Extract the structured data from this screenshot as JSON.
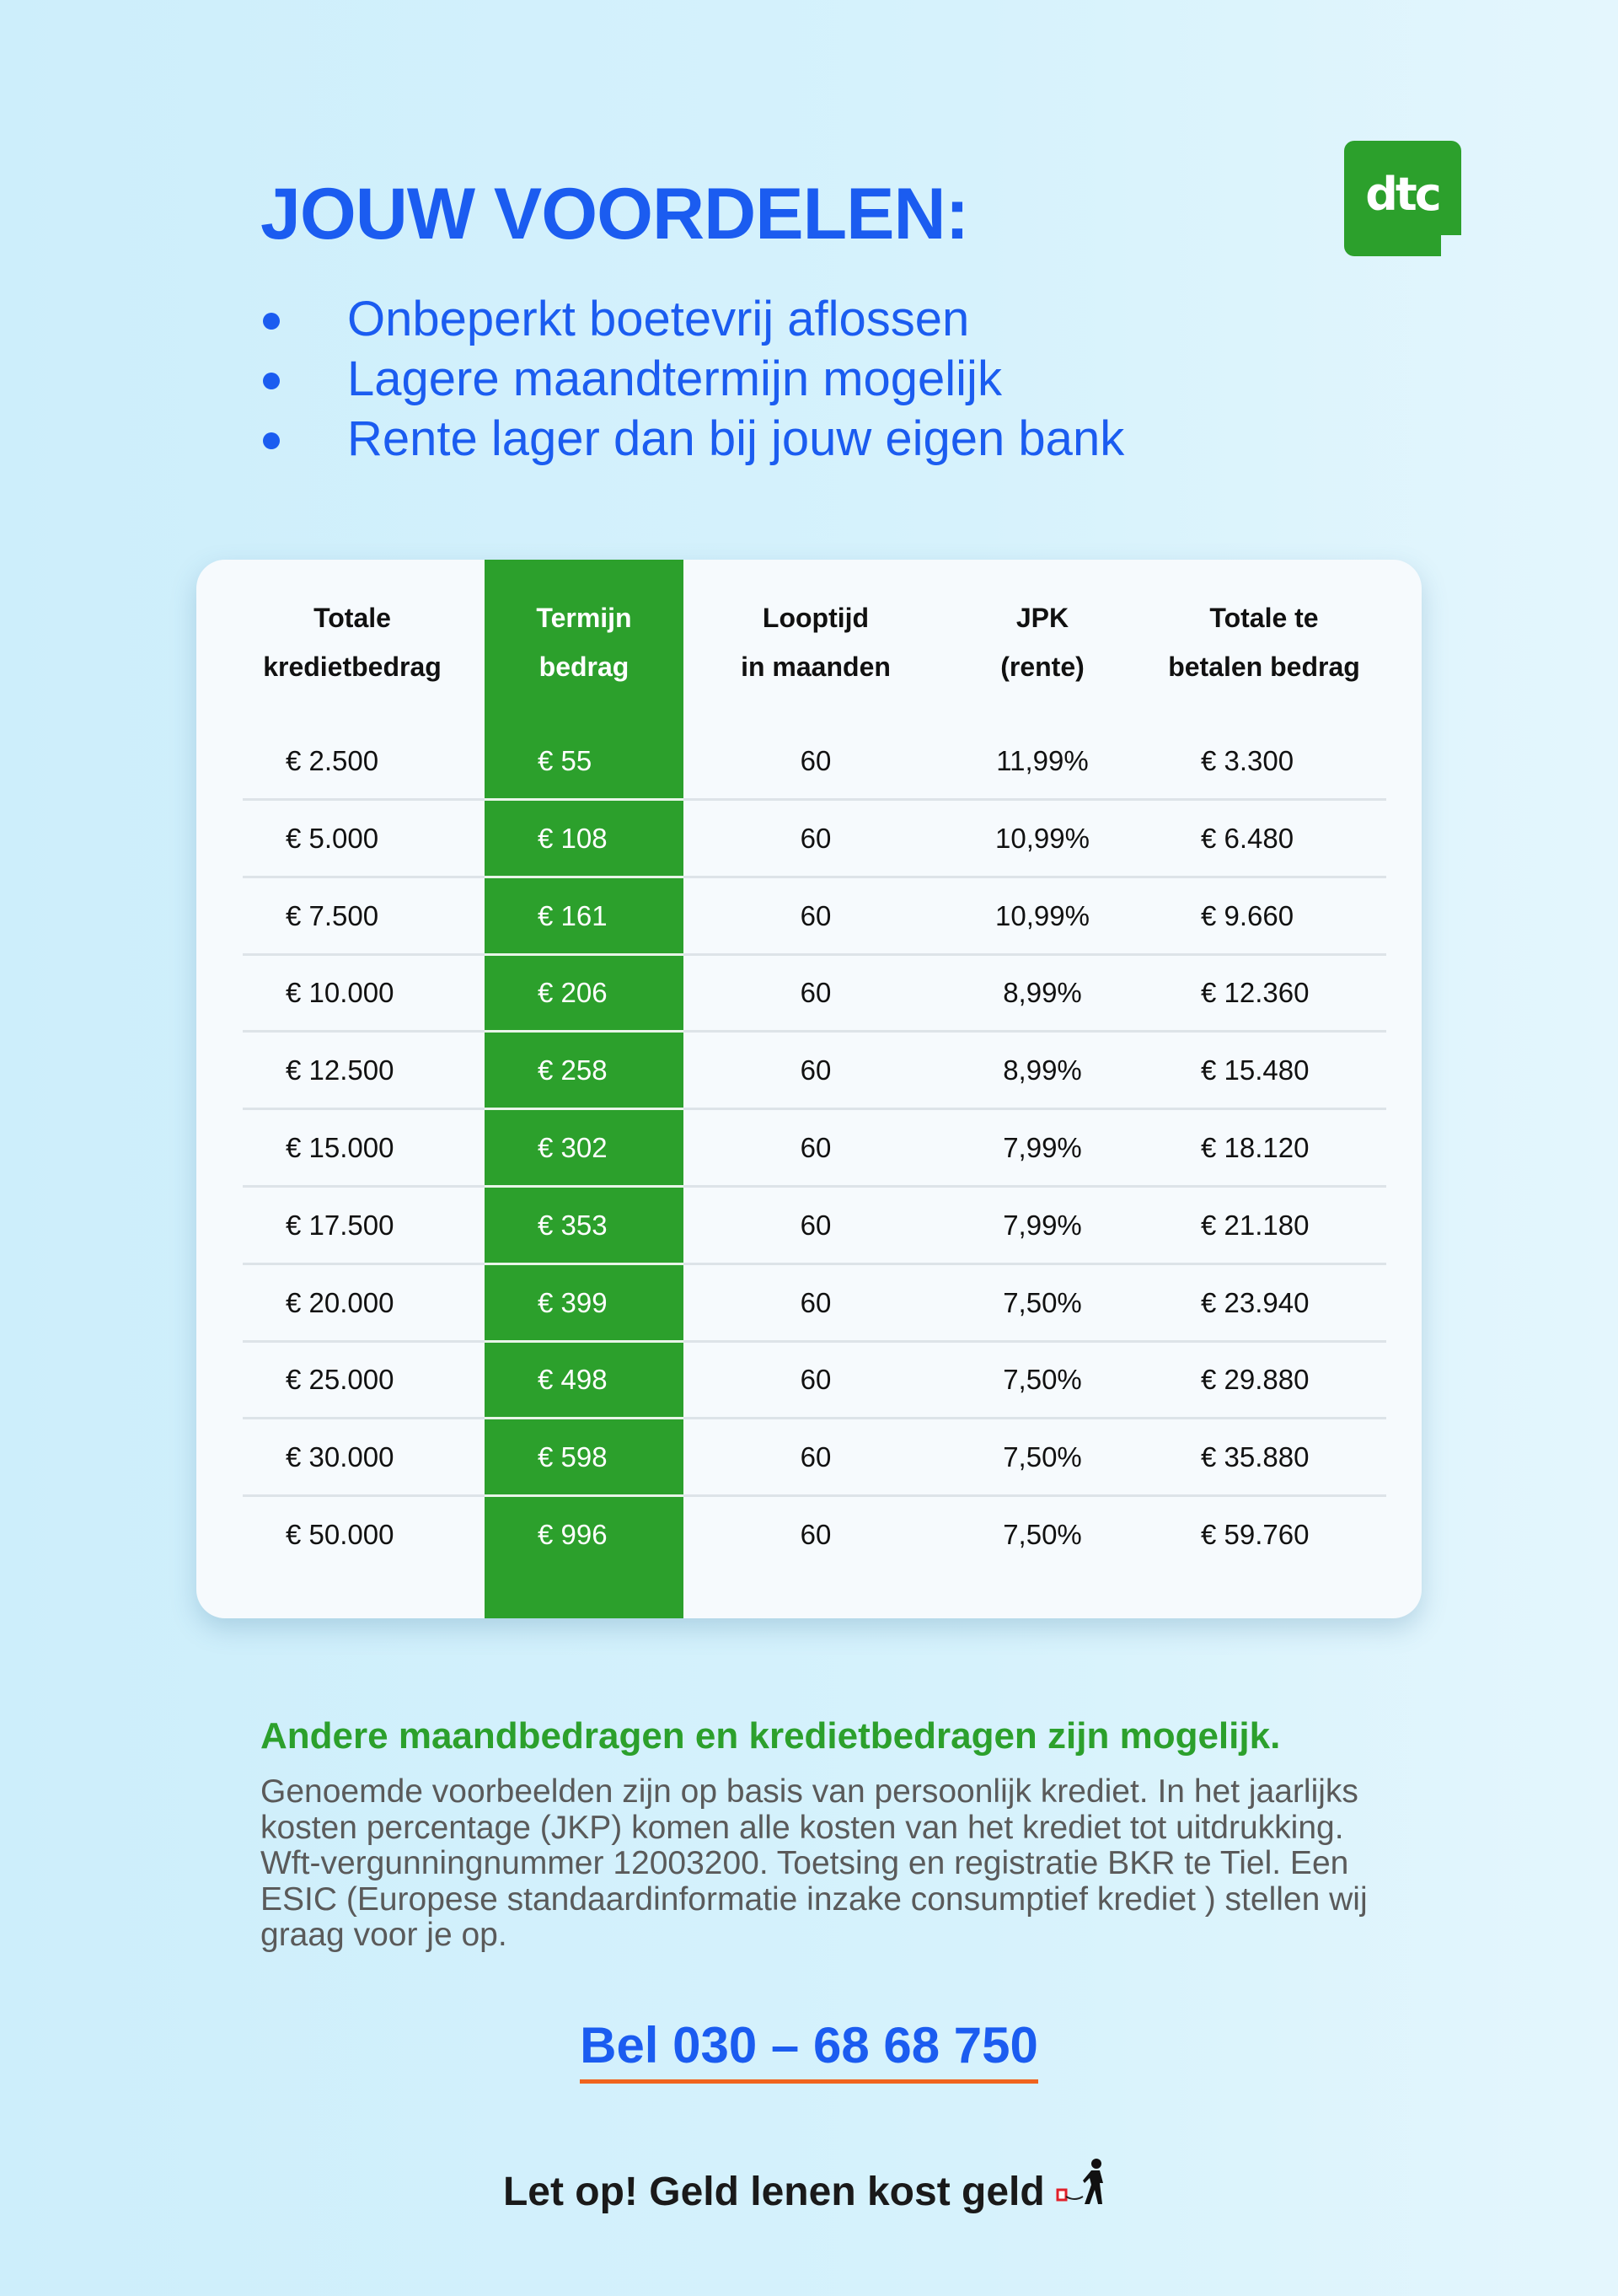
{
  "header": {
    "title": "JOUW VOORDELEN:",
    "bullets": [
      "Onbeperkt boetevrij aflossen",
      "Lagere maandtermijn mogelijk",
      "Rente lager dan bij jouw eigen bank"
    ],
    "logo_text": "dtc"
  },
  "table": {
    "headers": [
      [
        "Totale",
        "kredietbedrag"
      ],
      [
        "Termijn",
        "bedrag"
      ],
      [
        "Looptijd",
        "in maanden"
      ],
      [
        "JPK",
        "(rente)"
      ],
      [
        "Totale te",
        "betalen bedrag"
      ]
    ],
    "rows": [
      [
        "€ 2.500",
        "€ 55",
        "60",
        "11,99%",
        "€ 3.300"
      ],
      [
        "€ 5.000",
        "€ 108",
        "60",
        "10,99%",
        "€ 6.480"
      ],
      [
        "€ 7.500",
        "€ 161",
        "60",
        "10,99%",
        "€ 9.660"
      ],
      [
        "€ 10.000",
        "€ 206",
        "60",
        "8,99%",
        "€ 12.360"
      ],
      [
        "€ 12.500",
        "€ 258",
        "60",
        "8,99%",
        "€ 15.480"
      ],
      [
        "€ 15.000",
        "€ 302",
        "60",
        "7,99%",
        "€ 18.120"
      ],
      [
        "€ 17.500",
        "€ 353",
        "60",
        "7,99%",
        "€ 21.180"
      ],
      [
        "€ 20.000",
        "€ 399",
        "60",
        "7,50%",
        "€ 23.940"
      ],
      [
        "€ 25.000",
        "€ 498",
        "60",
        "7,50%",
        "€ 29.880"
      ],
      [
        "€ 30.000",
        "€ 598",
        "60",
        "7,50%",
        "€ 35.880"
      ],
      [
        "€ 50.000",
        "€ 996",
        "60",
        "7,50%",
        "€ 59.760"
      ]
    ],
    "highlight_color": "#2ca02c"
  },
  "footer": {
    "note": "Andere maandbedragen en kredietbedragen zijn mogelijk.",
    "disclaimer": "Genoemde voorbeelden zijn op basis van persoonlijk krediet. In het jaarlijks kosten percentage (JKP) komen alle kosten van het krediet tot uitdrukking. Wft-vergunningnummer 12003200. Toetsing en registratie BKR te Tiel. Een ESIC (Europese standaardinformatie inzake consumptief krediet ) stellen wij graag voor je op.",
    "phone": "Bel 030 – 68 68 750",
    "warning": "Let op! Geld lenen kost geld"
  },
  "colors": {
    "blue": "#1b5cf0",
    "green": "#2ca02c",
    "underline": "#f0641e"
  }
}
